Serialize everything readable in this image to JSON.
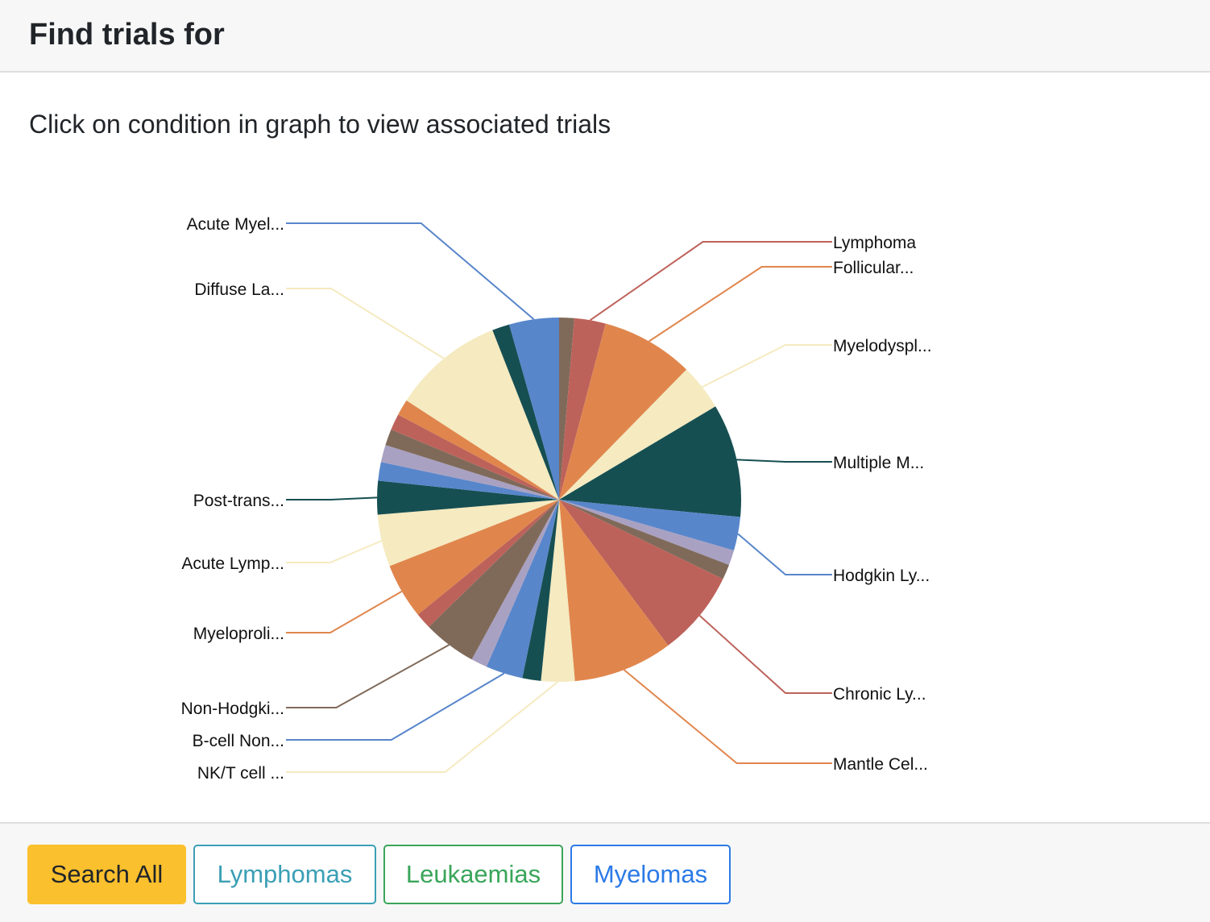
{
  "header": {
    "title": "Find trials for"
  },
  "instruction": "Click on condition in graph to view associated trials",
  "buttons": {
    "search_all": "Search All",
    "lymphomas": "Lymphomas",
    "leukaemias": "Leukaemias",
    "myelomas": "Myelomas"
  },
  "chart_data": {
    "type": "pie",
    "title": "",
    "start": "12 o'clock",
    "direction": "clockwise",
    "slices": [
      {
        "label": "",
        "value": 1.3,
        "color": "#7f6a5a"
      },
      {
        "label": "Lymphoma",
        "value": 2.7,
        "color": "#bd625a"
      },
      {
        "label": "Follicular...",
        "value": 8.0,
        "color": "#e0864d"
      },
      {
        "label": "Myelodyspl...",
        "value": 4.0,
        "color": "#f5eac0"
      },
      {
        "label": "Multiple M...",
        "value": 9.8,
        "color": "#164f52"
      },
      {
        "label": "Hodgkin Ly...",
        "value": 2.9,
        "color": "#5886cb"
      },
      {
        "label": "",
        "value": 1.3,
        "color": "#a9a1c2"
      },
      {
        "label": "",
        "value": 1.3,
        "color": "#7f6a5a"
      },
      {
        "label": "Chronic Ly...",
        "value": 7.4,
        "color": "#bd625a"
      },
      {
        "label": "Mantle Cel...",
        "value": 8.6,
        "color": "#e0864d"
      },
      {
        "label": "NK/T cell ...",
        "value": 2.9,
        "color": "#f5eac0"
      },
      {
        "label": "",
        "value": 1.6,
        "color": "#164f52"
      },
      {
        "label": "B-cell Non...",
        "value": 3.2,
        "color": "#5886cb"
      },
      {
        "label": "",
        "value": 1.4,
        "color": "#a9a1c2"
      },
      {
        "label": "Non-Hodgki...",
        "value": 4.6,
        "color": "#7f6a5a"
      },
      {
        "label": "",
        "value": 1.4,
        "color": "#bd625a"
      },
      {
        "label": "Myeloproli...",
        "value": 4.8,
        "color": "#e0864d"
      },
      {
        "label": "Acute Lymp...",
        "value": 4.5,
        "color": "#f5eac0"
      },
      {
        "label": "Post-trans...",
        "value": 2.9,
        "color": "#164f52"
      },
      {
        "label": "",
        "value": 1.6,
        "color": "#5886cb"
      },
      {
        "label": "",
        "value": 1.5,
        "color": "#a9a1c2"
      },
      {
        "label": "",
        "value": 1.4,
        "color": "#7f6a5a"
      },
      {
        "label": "",
        "value": 1.4,
        "color": "#bd625a"
      },
      {
        "label": "",
        "value": 1.4,
        "color": "#e0864d"
      },
      {
        "label": "Diffuse La...",
        "value": 9.6,
        "color": "#f5eac0"
      },
      {
        "label": "",
        "value": 1.5,
        "color": "#164f52"
      },
      {
        "label": "Acute Myel...",
        "value": 4.3,
        "color": "#5886cb"
      }
    ]
  }
}
